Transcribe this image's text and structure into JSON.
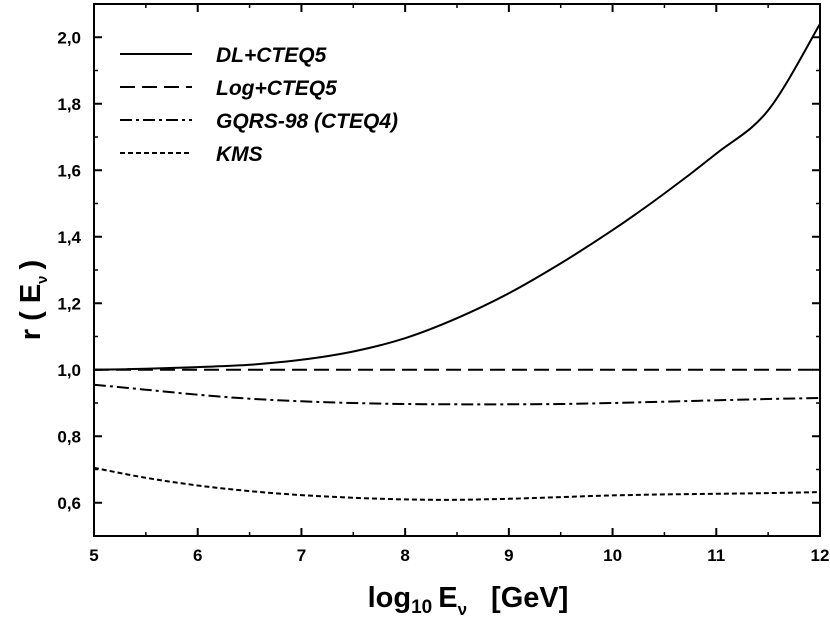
{
  "chart_data": {
    "type": "line",
    "xlabel": {
      "main": "log",
      "sub": "10",
      "var": "E",
      "var_sub": "ν",
      "unit": "[GeV]"
    },
    "ylabel": {
      "main": "r ( E",
      "sub": "ν",
      "close": ")"
    },
    "xlim": [
      5,
      12
    ],
    "ylim": [
      0.5,
      2.1
    ],
    "x_ticks": [
      "5",
      "6",
      "7",
      "8",
      "9",
      "10",
      "11",
      "12"
    ],
    "y_ticks": [
      "0,6",
      "0,8",
      "1,0",
      "1,2",
      "1,4",
      "1,6",
      "1,8",
      "2,0"
    ],
    "series": [
      {
        "name": "DL+CTEQ5",
        "style": "solid",
        "x": [
          5,
          5.5,
          6,
          6.5,
          7,
          7.5,
          8,
          8.5,
          9,
          9.5,
          10,
          10.5,
          11,
          11.5,
          12
        ],
        "y": [
          1.0,
          1.003,
          1.008,
          1.015,
          1.03,
          1.055,
          1.095,
          1.155,
          1.23,
          1.32,
          1.42,
          1.53,
          1.65,
          1.78,
          2.04
        ]
      },
      {
        "name": "Log+CTEQ5",
        "style": "dashed",
        "x": [
          5,
          12
        ],
        "y": [
          1.0,
          1.0
        ]
      },
      {
        "name": "GQRS-98 (CTEQ4)",
        "style": "dashdot",
        "x": [
          5,
          5.5,
          6,
          6.5,
          7,
          7.5,
          8,
          8.5,
          9,
          9.5,
          10,
          10.5,
          11,
          11.5,
          12
        ],
        "y": [
          0.955,
          0.94,
          0.925,
          0.913,
          0.905,
          0.9,
          0.897,
          0.896,
          0.896,
          0.897,
          0.9,
          0.904,
          0.908,
          0.912,
          0.915
        ]
      },
      {
        "name": "KMS",
        "style": "dotted",
        "x": [
          5,
          5.5,
          6,
          6.5,
          7,
          7.5,
          8,
          8.5,
          9,
          9.5,
          10,
          10.5,
          11,
          11.5,
          12
        ],
        "y": [
          0.705,
          0.675,
          0.652,
          0.635,
          0.623,
          0.615,
          0.61,
          0.609,
          0.612,
          0.617,
          0.622,
          0.625,
          0.627,
          0.629,
          0.632
        ]
      }
    ]
  }
}
